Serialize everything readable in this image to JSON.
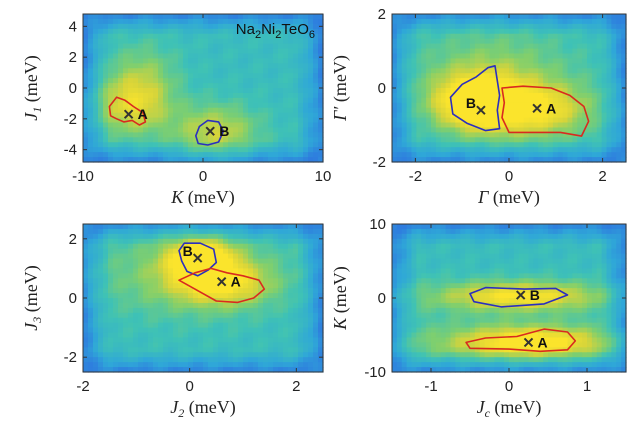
{
  "colors": {
    "map_low": "#2a46d8",
    "map_mid": "#3cb8c8",
    "map_high": "#f7e23a",
    "contour_A": "#d92a1f",
    "contour_B": "#2b2fbf",
    "marker": "#333333"
  },
  "chart_data": [
    {
      "type": "heatmap",
      "panel": "top-left",
      "annotation": {
        "main": "Na",
        "sub1": "2",
        "mid1": "Ni",
        "sub2": "2",
        "mid2": "TeO",
        "sub3": "6"
      },
      "xlabel": {
        "sym": "K",
        "unit": " (meV)"
      },
      "ylabel": {
        "sym": "J",
        "sub": "1",
        "unit": " (meV)"
      },
      "xlim": [
        -10,
        10
      ],
      "ylim": [
        -4.8,
        4.8
      ],
      "xticks": [
        -10,
        0,
        10
      ],
      "yticks": [
        4,
        2,
        0,
        -2,
        -4
      ],
      "xtick_labels": [
        "-10",
        "0",
        "10"
      ],
      "ytick_labels": [
        "4",
        "2",
        "0",
        "-2",
        "-4"
      ],
      "blobs": [
        {
          "x": -6.0,
          "y": -1.2,
          "sx": 2.2,
          "sy": 1.3,
          "amp": 0.55
        },
        {
          "x": 1.0,
          "y": -2.8,
          "sx": 2.5,
          "sy": 1.2,
          "amp": 0.5
        },
        {
          "x": -5.0,
          "y": 0.8,
          "sx": 2.0,
          "sy": 1.5,
          "amp": 0.3
        }
      ],
      "points": [
        {
          "label": "A",
          "x": -6.2,
          "y": -1.7
        },
        {
          "label": "B",
          "x": 0.6,
          "y": -2.8
        }
      ],
      "contours": [
        {
          "name": "A",
          "color": "red",
          "path": [
            [
              -7.8,
              -1.2
            ],
            [
              -7.2,
              -0.6
            ],
            [
              -6.5,
              -0.8
            ],
            [
              -5.8,
              -1.2
            ],
            [
              -5.0,
              -1.6
            ],
            [
              -4.8,
              -2.2
            ],
            [
              -5.3,
              -2.4
            ],
            [
              -5.9,
              -2.1
            ],
            [
              -6.6,
              -2.2
            ],
            [
              -7.2,
              -2.0
            ],
            [
              -7.7,
              -1.8
            ]
          ]
        },
        {
          "name": "B",
          "color": "blue",
          "path": [
            [
              -0.6,
              -3.1
            ],
            [
              -0.3,
              -2.5
            ],
            [
              0.4,
              -2.1
            ],
            [
              1.3,
              -2.2
            ],
            [
              1.7,
              -2.8
            ],
            [
              1.3,
              -3.5
            ],
            [
              0.4,
              -3.7
            ],
            [
              -0.4,
              -3.6
            ]
          ]
        }
      ]
    },
    {
      "type": "heatmap",
      "panel": "top-right",
      "xlabel": {
        "sym": "Γ",
        "unit": " (meV)"
      },
      "ylabel": {
        "sym": "Γ′",
        "unit": " (meV)"
      },
      "xlim": [
        -2.5,
        2.5
      ],
      "ylim": [
        -2,
        2
      ],
      "xticks": [
        -2,
        0,
        2
      ],
      "yticks": [
        2,
        0,
        -2
      ],
      "xtick_labels": [
        "-2",
        "0",
        "2"
      ],
      "ytick_labels": [
        "2",
        "0",
        "-2"
      ],
      "blobs": [
        {
          "x": -0.7,
          "y": -0.4,
          "sx": 0.6,
          "sy": 0.5,
          "amp": 1.0
        },
        {
          "x": 0.6,
          "y": -0.6,
          "sx": 0.8,
          "sy": 0.5,
          "amp": 0.65
        },
        {
          "x": -0.3,
          "y": 0.3,
          "sx": 1.2,
          "sy": 0.9,
          "amp": 0.35
        }
      ],
      "points": [
        {
          "label": "B",
          "x": -0.6,
          "y": -0.6
        },
        {
          "label": "A",
          "x": 0.6,
          "y": -0.55
        }
      ],
      "contours": [
        {
          "name": "B",
          "color": "blue",
          "path": [
            [
              -1.25,
              -0.25
            ],
            [
              -1.0,
              0.1
            ],
            [
              -0.7,
              0.3
            ],
            [
              -0.45,
              0.55
            ],
            [
              -0.3,
              0.6
            ],
            [
              -0.25,
              0.2
            ],
            [
              -0.2,
              -0.2
            ],
            [
              -0.25,
              -0.6
            ],
            [
              -0.2,
              -1.1
            ],
            [
              -0.5,
              -1.15
            ],
            [
              -0.9,
              -0.95
            ],
            [
              -1.2,
              -0.7
            ]
          ]
        },
        {
          "name": "A",
          "color": "red",
          "path": [
            [
              -0.15,
              0.0
            ],
            [
              0.3,
              0.05
            ],
            [
              0.9,
              0.0
            ],
            [
              1.3,
              -0.2
            ],
            [
              1.6,
              -0.5
            ],
            [
              1.7,
              -0.9
            ],
            [
              1.55,
              -1.3
            ],
            [
              1.1,
              -1.2
            ],
            [
              0.5,
              -1.2
            ],
            [
              0.0,
              -1.2
            ],
            [
              -0.15,
              -0.8
            ],
            [
              -0.1,
              -0.4
            ]
          ]
        }
      ]
    },
    {
      "type": "heatmap",
      "panel": "bottom-left",
      "xlabel": {
        "sym": "J",
        "sub": "2",
        "unit": " (meV)"
      },
      "ylabel": {
        "sym": "J",
        "sub": "3",
        "unit": " (meV)"
      },
      "xlim": [
        -2,
        2.5
      ],
      "ylim": [
        -2.5,
        2.5
      ],
      "xticks": [
        -2,
        0,
        2
      ],
      "yticks": [
        2,
        0,
        -2
      ],
      "xtick_labels": [
        "-2",
        "0",
        "2"
      ],
      "ytick_labels": [
        "2",
        "0",
        "-2"
      ],
      "blobs": [
        {
          "x": 0.2,
          "y": 1.3,
          "sx": 0.4,
          "sy": 0.45,
          "amp": 0.95
        },
        {
          "x": 0.6,
          "y": 0.5,
          "sx": 0.6,
          "sy": 0.5,
          "amp": 0.6
        },
        {
          "x": 0.0,
          "y": 0.8,
          "sx": 1.2,
          "sy": 1.0,
          "amp": 0.35
        }
      ],
      "points": [
        {
          "label": "B",
          "x": 0.15,
          "y": 1.35
        },
        {
          "label": "A",
          "x": 0.6,
          "y": 0.55
        }
      ],
      "contours": [
        {
          "name": "B",
          "color": "blue",
          "path": [
            [
              -0.2,
              1.6
            ],
            [
              -0.1,
              1.85
            ],
            [
              0.2,
              1.85
            ],
            [
              0.45,
              1.65
            ],
            [
              0.5,
              1.2
            ],
            [
              0.35,
              0.95
            ],
            [
              0.15,
              0.75
            ],
            [
              -0.05,
              0.9
            ],
            [
              -0.15,
              1.25
            ]
          ]
        },
        {
          "name": "A",
          "color": "red",
          "path": [
            [
              -0.2,
              0.6
            ],
            [
              0.1,
              0.85
            ],
            [
              0.4,
              1.0
            ],
            [
              0.7,
              0.85
            ],
            [
              1.0,
              0.75
            ],
            [
              1.3,
              0.6
            ],
            [
              1.4,
              0.3
            ],
            [
              1.2,
              0.0
            ],
            [
              0.9,
              -0.15
            ],
            [
              0.5,
              -0.1
            ],
            [
              0.2,
              0.2
            ]
          ]
        }
      ]
    },
    {
      "type": "heatmap",
      "panel": "bottom-right",
      "xlabel": {
        "sym": "J",
        "sub": "c",
        "unit": " (meV)"
      },
      "ylabel": {
        "sym": "K",
        "unit": " (meV)"
      },
      "xlim": [
        -1.5,
        1.5
      ],
      "ylim": [
        -10,
        10
      ],
      "xticks": [
        -1,
        0,
        1
      ],
      "yticks": [
        10,
        0,
        -10
      ],
      "xtick_labels": [
        "-1",
        "0",
        "1"
      ],
      "ytick_labels": [
        "10",
        "0",
        "-10"
      ],
      "blobs": [
        {
          "x": 0.15,
          "y": 0.3,
          "sx": 0.6,
          "sy": 1.2,
          "amp": 0.55
        },
        {
          "x": 0.3,
          "y": -6.0,
          "sx": 0.6,
          "sy": 1.4,
          "amp": 0.65
        },
        {
          "x": 0.0,
          "y": -6.0,
          "sx": 1.2,
          "sy": 2.0,
          "amp": 0.3
        },
        {
          "x": 0.0,
          "y": 0.0,
          "sx": 1.2,
          "sy": 1.8,
          "amp": 0.25
        }
      ],
      "points": [
        {
          "label": "B",
          "x": 0.15,
          "y": 0.4
        },
        {
          "label": "A",
          "x": 0.25,
          "y": -6.0
        }
      ],
      "contours": [
        {
          "name": "B",
          "color": "blue",
          "path": [
            [
              -0.5,
              0.6
            ],
            [
              -0.3,
              1.4
            ],
            [
              0.2,
              1.2
            ],
            [
              0.6,
              1.3
            ],
            [
              0.75,
              0.4
            ],
            [
              0.45,
              -0.8
            ],
            [
              -0.1,
              -1.2
            ],
            [
              -0.45,
              -0.5
            ]
          ]
        },
        {
          "name": "A",
          "color": "red",
          "path": [
            [
              -0.55,
              -6.0
            ],
            [
              -0.3,
              -5.4
            ],
            [
              0.1,
              -5.2
            ],
            [
              0.45,
              -4.2
            ],
            [
              0.75,
              -4.6
            ],
            [
              0.85,
              -5.8
            ],
            [
              0.75,
              -7.0
            ],
            [
              0.4,
              -7.2
            ],
            [
              0.0,
              -6.9
            ],
            [
              -0.5,
              -6.8
            ]
          ]
        }
      ]
    }
  ]
}
